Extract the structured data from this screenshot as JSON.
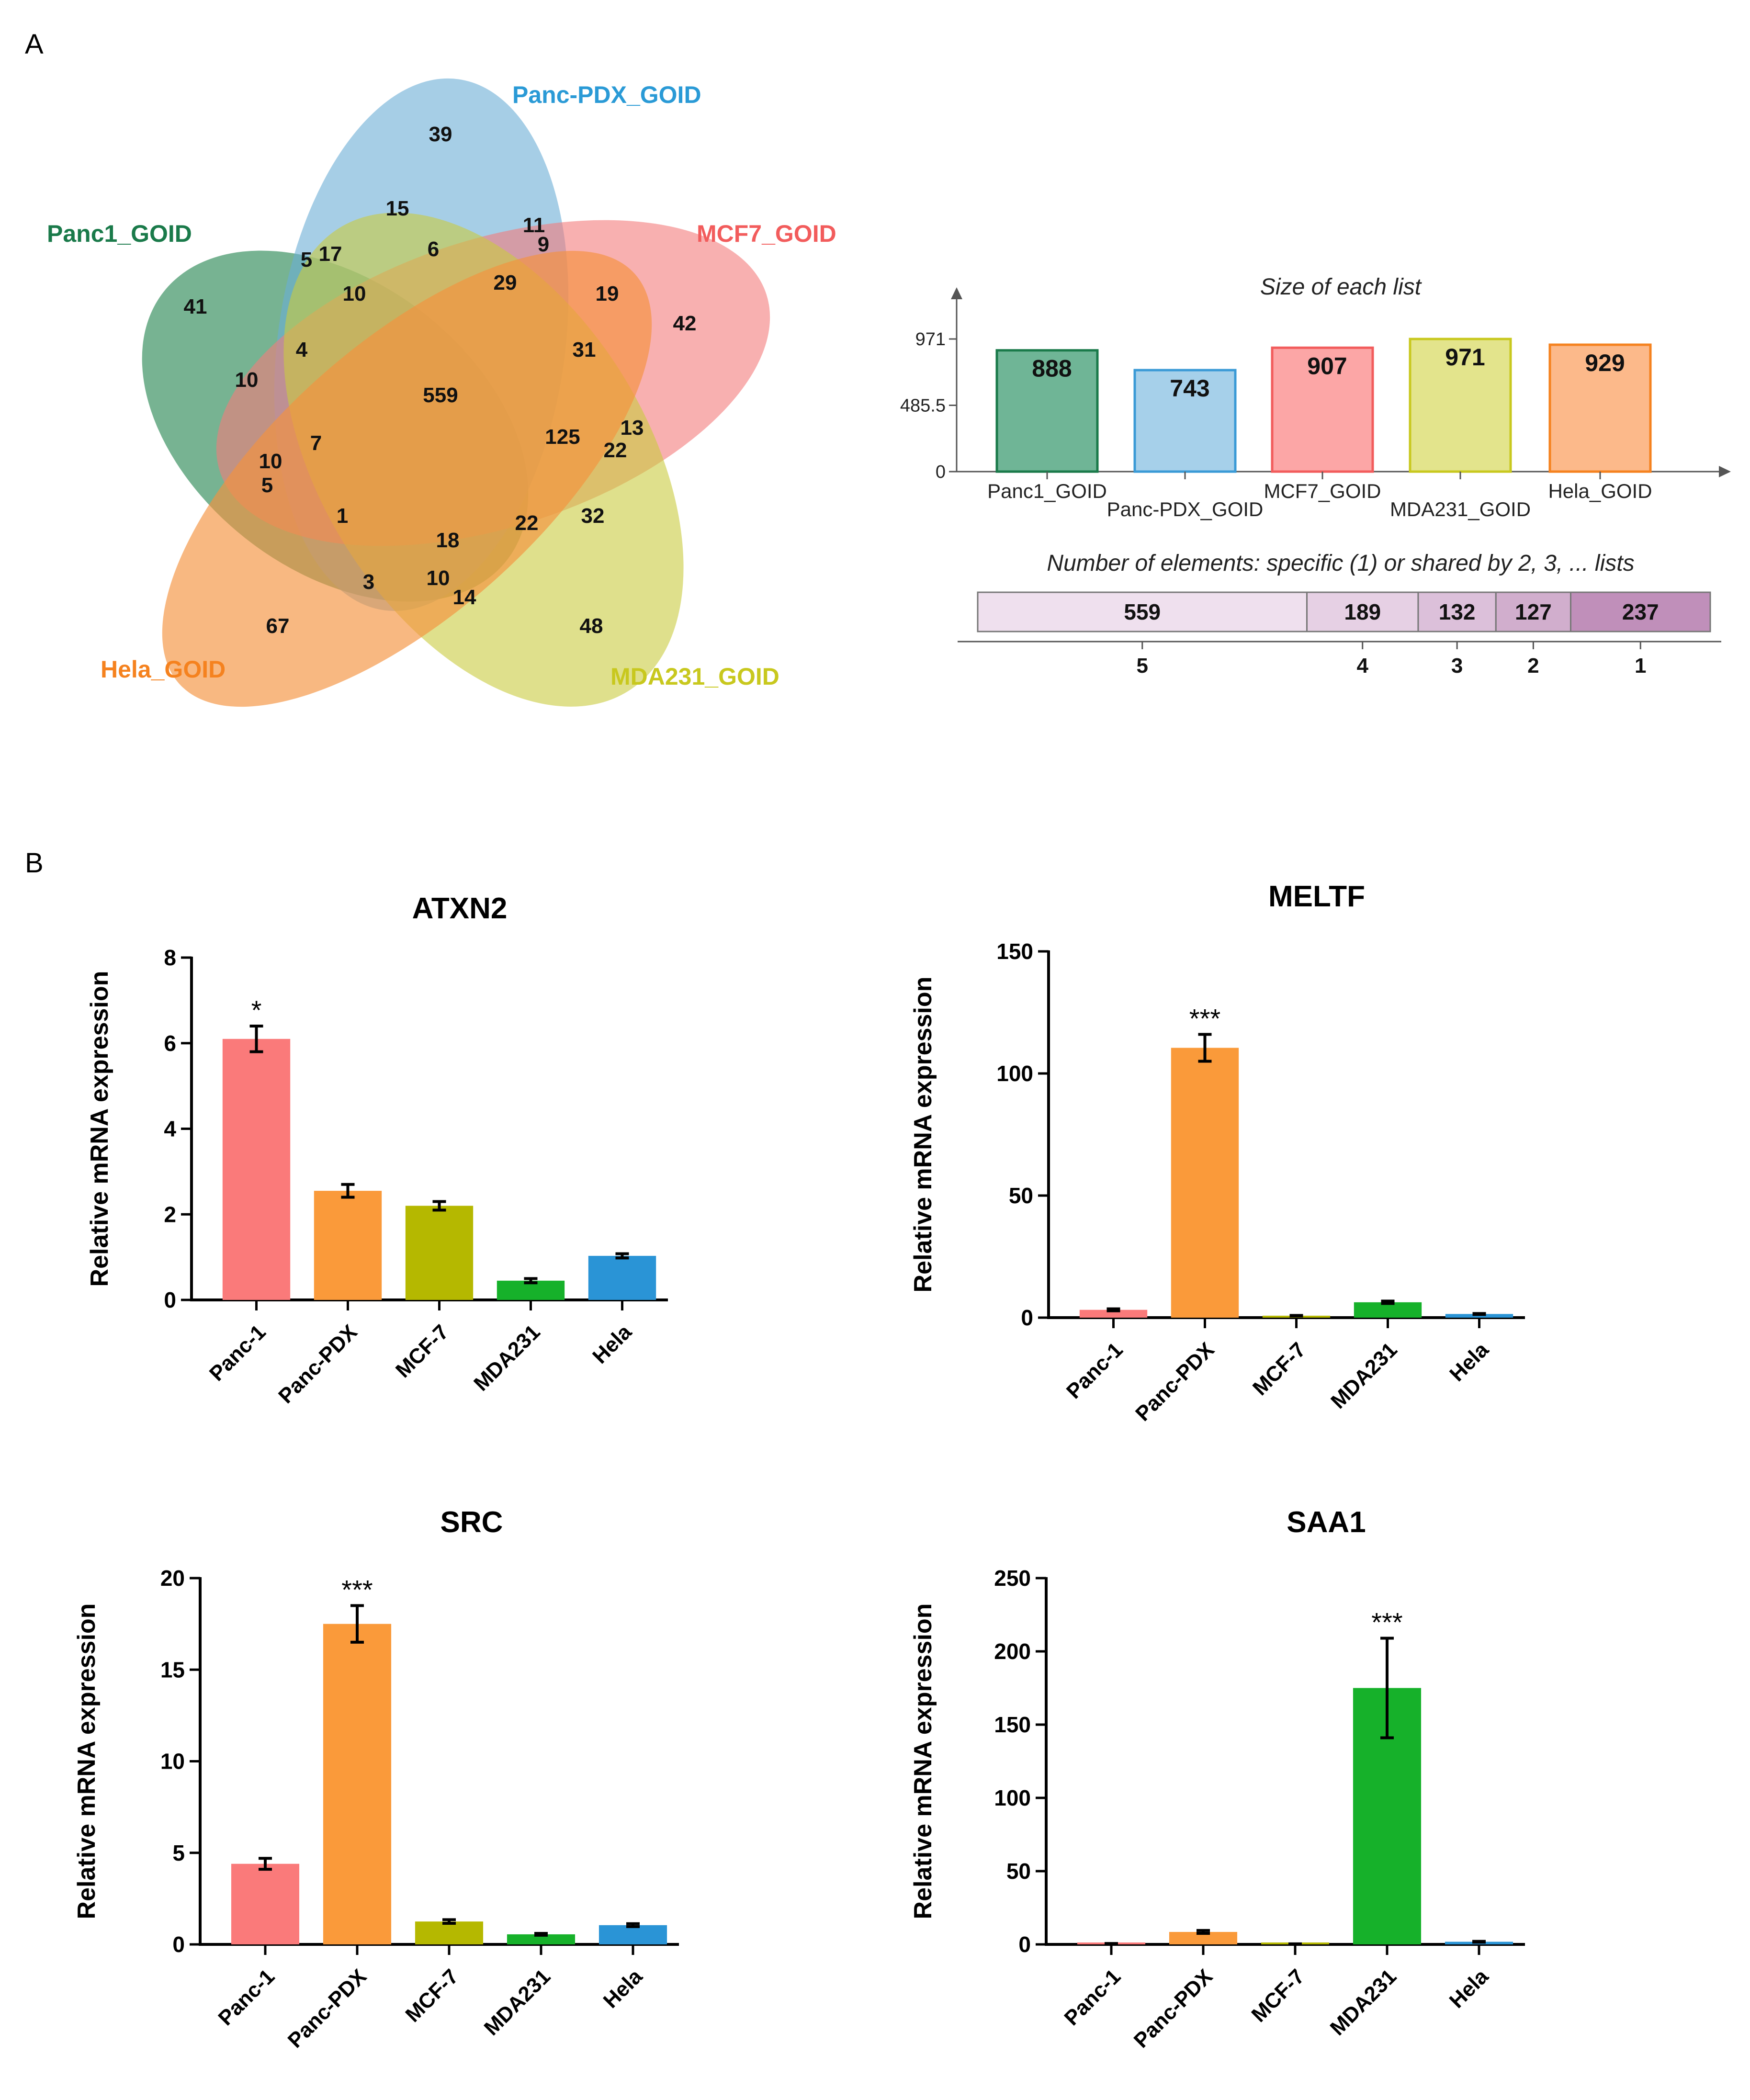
{
  "panels": {
    "a": "A",
    "b": "B"
  },
  "venn": {
    "sets": [
      {
        "name": "Panc1_GOID",
        "color": "#1a7a4a",
        "fill": "#2e8b57"
      },
      {
        "name": "Panc-PDX_GOID",
        "color": "#2a9ad6",
        "fill": "#6baed6"
      },
      {
        "name": "MCF7_GOID",
        "color": "#f25c5c",
        "fill": "#f47c7c"
      },
      {
        "name": "MDA231_GOID",
        "color": "#c8c81e",
        "fill": "#c9cc3f"
      },
      {
        "name": "Hela_GOID",
        "color": "#f5821f",
        "fill": "#f5923e"
      }
    ],
    "regions": [
      "39",
      "15",
      "11",
      "9",
      "6",
      "17",
      "5",
      "10",
      "29",
      "19",
      "42",
      "41",
      "4",
      "31",
      "10",
      "559",
      "7",
      "125",
      "13",
      "22",
      "10",
      "5",
      "1",
      "18",
      "22",
      "32",
      "3",
      "10",
      "14",
      "67",
      "48"
    ]
  },
  "size_chart": {
    "title": "Size of each list",
    "yticks": [
      "971",
      "485.5",
      "0"
    ],
    "ymax": 971,
    "bars": [
      {
        "label": "Panc1_GOID",
        "value": 888,
        "text": "888",
        "fill": "#6fb596",
        "stroke": "#1a7a4a"
      },
      {
        "label": "Panc-PDX_GOID",
        "value": 743,
        "text": "743",
        "fill": "#a6d0ea",
        "stroke": "#3a9ad6"
      },
      {
        "label": "MCF7_GOID",
        "value": 907,
        "text": "907",
        "fill": "#fca6a6",
        "stroke": "#f25c5c"
      },
      {
        "label": "MDA231_GOID",
        "value": 971,
        "text": "971",
        "fill": "#e3e48c",
        "stroke": "#c8c81e"
      },
      {
        "label": "Hela_GOID",
        "value": 929,
        "text": "929",
        "fill": "#fcb98a",
        "stroke": "#f5821f"
      }
    ]
  },
  "shared_chart": {
    "title": "Number of elements: specific (1) or shared by 2, 3, ... lists",
    "segments": [
      {
        "label": "5",
        "value": 559,
        "text": "559",
        "fill": "#efe0ee"
      },
      {
        "label": "4",
        "value": 189,
        "text": "189",
        "fill": "#e6d0e4"
      },
      {
        "label": "3",
        "value": 132,
        "text": "132",
        "fill": "#dcc0da"
      },
      {
        "label": "2",
        "value": 127,
        "text": "127",
        "fill": "#d1aecd"
      },
      {
        "label": "1",
        "value": 237,
        "text": "237",
        "fill": "#c08fba"
      }
    ]
  },
  "chart_data": [
    {
      "type": "bar",
      "title": "ATXN2",
      "ylabel": "Relative mRNA expression",
      "categories": [
        "Panc-1",
        "Panc-PDX",
        "MCF-7",
        "MDA231",
        "Hela"
      ],
      "values": [
        6.1,
        2.55,
        2.2,
        0.45,
        1.03
      ],
      "errors": [
        0.3,
        0.15,
        0.1,
        0.05,
        0.05
      ],
      "ylim": [
        0,
        8
      ],
      "yticks": [
        0,
        2,
        4,
        6,
        8
      ],
      "ytick_labels": [
        "0",
        "2",
        "4",
        "6",
        "8"
      ],
      "significance": [
        "*",
        "",
        "",
        "",
        ""
      ],
      "colors": [
        "#fa7a7a",
        "#fa9a3a",
        "#b5b800",
        "#16b12a",
        "#2a94d6"
      ]
    },
    {
      "type": "bar",
      "title": "MELTF",
      "ylabel": "Relative mRNA expression",
      "categories": [
        "Panc-1",
        "Panc-PDX",
        "MCF-7",
        "MDA231",
        "Hela"
      ],
      "values": [
        3.2,
        110.5,
        0.8,
        6.3,
        1.5
      ],
      "errors": [
        0.4,
        5.5,
        0.1,
        0.5,
        0.2
      ],
      "ylim": [
        0,
        150
      ],
      "yticks": [
        0,
        50,
        100,
        150
      ],
      "ytick_labels": [
        "0",
        "50",
        "100",
        "150"
      ],
      "significance": [
        "",
        "***",
        "",
        "",
        ""
      ],
      "colors": [
        "#fa7a7a",
        "#fa9a3a",
        "#b5b800",
        "#16b12a",
        "#2a94d6"
      ]
    },
    {
      "type": "bar",
      "title": "SRC",
      "ylabel": "Relative mRNA expression",
      "categories": [
        "Panc-1",
        "Panc-PDX",
        "MCF-7",
        "MDA231",
        "Hela"
      ],
      "values": [
        4.4,
        17.5,
        1.25,
        0.55,
        1.05
      ],
      "errors": [
        0.3,
        1.0,
        0.1,
        0.05,
        0.08
      ],
      "ylim": [
        0,
        20
      ],
      "yticks": [
        0,
        5,
        10,
        15,
        20
      ],
      "ytick_labels": [
        "0",
        "5",
        "10",
        "15",
        "20"
      ],
      "significance": [
        "",
        "***",
        "",
        "",
        ""
      ],
      "colors": [
        "#fa7a7a",
        "#fa9a3a",
        "#b5b800",
        "#16b12a",
        "#2a94d6"
      ]
    },
    {
      "type": "bar",
      "title": "SAA1",
      "ylabel": "Relative mRNA expression",
      "categories": [
        "Panc-1",
        "Panc-PDX",
        "MCF-7",
        "MDA231",
        "Hela"
      ],
      "values": [
        0.5,
        8.5,
        0.3,
        175,
        1.8
      ],
      "errors": [
        0.1,
        1.0,
        0.05,
        34,
        0.3
      ],
      "ylim": [
        0,
        250
      ],
      "yticks": [
        0,
        50,
        100,
        150,
        200,
        250
      ],
      "ytick_labels": [
        "0",
        "50",
        "100",
        "150",
        "200",
        "250"
      ],
      "significance": [
        "",
        "",
        "",
        "***",
        ""
      ],
      "colors": [
        "#fa7a7a",
        "#fa9a3a",
        "#b5b800",
        "#16b12a",
        "#2a94d6"
      ]
    }
  ]
}
